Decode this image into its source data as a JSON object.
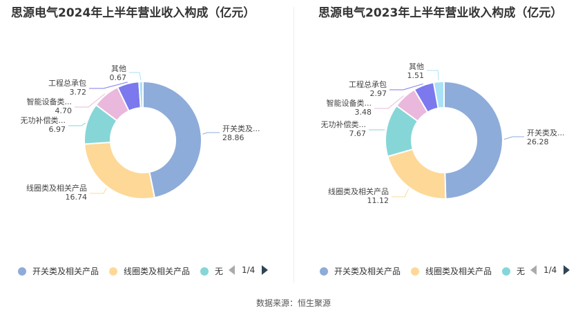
{
  "source": "数据来源：恒生聚源",
  "pager": {
    "text": "1/4"
  },
  "chart_data": [
    {
      "type": "pie",
      "title": "思源电气2024年上半年营业收入构成（亿元）",
      "labels": [
        "开关类及...",
        "线圈类及相关产品",
        "无功补偿类...",
        "智能设备类...",
        "工程总承包",
        "其他"
      ],
      "values": [
        28.86,
        16.74,
        6.97,
        4.7,
        3.72,
        0.67
      ],
      "legend": [
        "开关类及相关产品",
        "线圈类及相关产品",
        "无"
      ],
      "legend_position": "bottom",
      "colors": [
        "#8eacd9",
        "#fdd897",
        "#86d6d8",
        "#eab8dc",
        "#7b79ed",
        "#a9e1f7"
      ]
    },
    {
      "type": "pie",
      "title": "思源电气2023年上半年营业收入构成（亿元）",
      "labels": [
        "开关类及...",
        "线圈类及相关产品",
        "无功补偿类...",
        "智能设备类...",
        "工程总承包",
        "其他"
      ],
      "values": [
        26.28,
        11.12,
        7.67,
        3.48,
        2.97,
        1.51
      ],
      "legend": [
        "开关类及相关产品",
        "线圈类及相关产品",
        "无"
      ],
      "legend_position": "bottom",
      "colors": [
        "#8eacd9",
        "#fdd897",
        "#86d6d8",
        "#eab8dc",
        "#7b79ed",
        "#a9e1f7"
      ]
    }
  ]
}
